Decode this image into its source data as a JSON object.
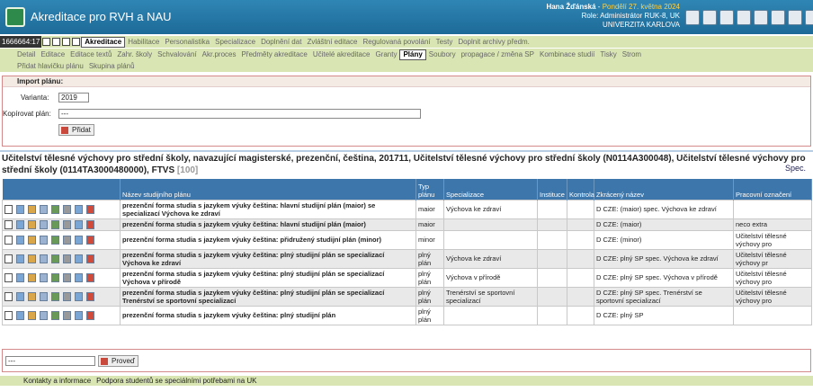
{
  "header": {
    "title": "Akreditace pro RVH a NAU",
    "user": "Hana Žďánská",
    "separator": "-",
    "date": "Pondělí 27. května 2024",
    "role": "Role: Administrátor RUK-8, UK",
    "university": "UNIVERZITA KARLOVA"
  },
  "session": "1666664:17",
  "menu": {
    "main": [
      "Akreditace",
      "Habilitace",
      "Personalistika",
      "Specializace",
      "Doplnění dat",
      "Zvláštní editace",
      "Regulovaná povolání",
      "Testy",
      "Doplnit archivy předm."
    ],
    "main_active": 0,
    "sub": [
      "Detail",
      "Editace",
      "Editace textů",
      "Zahr. školy",
      "Schvalování",
      "Akr.proces",
      "Předměty akreditace",
      "Učitelé akreditace",
      "Granty",
      "Plány",
      "Soubory",
      "propagace / změna SP",
      "Kombinace studií",
      "Tisky",
      "Strom"
    ],
    "sub_active": 9,
    "actions": [
      "Přidat hlavičku plánu",
      "Skupina plánů"
    ]
  },
  "import": {
    "title": "Import plánu:",
    "variant_label": "Varianta:",
    "variant_value": "2019",
    "copy_label": "Kopírovat plán:",
    "copy_value": "---",
    "button": "Přidat"
  },
  "program": {
    "title": "Učitelství tělesné výchovy pro střední školy, navazující magisterské, prezenční, čeština, 201711, Učitelství tělesné výchovy pro střední školy (N0114A300048), Učitelství tělesné výchovy pro střední školy (0114TA3000480000), FTVS",
    "code": "[100]",
    "spec_link": "Spec."
  },
  "table": {
    "columns": [
      "Název studijního plánu",
      "Typ plánu",
      "Specializace",
      "Instituce",
      "Kontrola",
      "Zkrácený název",
      "Pracovní označení"
    ],
    "rows": [
      [
        "prezenční forma studia s jazykem výuky čeština: hlavní studijní plán (maior) se specializací Výchova ke zdraví",
        "maior",
        "Výchova ke zdraví",
        null,
        null,
        "D CZE: (maior) spec. Výchova ke zdraví",
        null
      ],
      [
        "prezenční forma studia s jazykem výuky čeština: hlavní studijní plán (maior)",
        "maior",
        null,
        null,
        null,
        "D CZE: (maior)",
        "neco extra"
      ],
      [
        "prezenční forma studia s jazykem výuky čeština: přidružený studijní plán (minor)",
        "minor",
        null,
        null,
        null,
        "D CZE: (minor)",
        "Učitelství tělesné výchovy pro"
      ],
      [
        "prezenční forma studia s jazykem výuky čeština: plný studijní plán se specializací Výchova ke zdraví",
        "plný plán",
        "Výchova ke zdraví",
        null,
        null,
        "D CZE: plný SP spec. Výchova ke zdraví",
        "Učitelství tělesné výchovy pr"
      ],
      [
        "prezenční forma studia s jazykem výuky čeština: plný studijní plán se specializací Výchova v přírodě",
        "plný plán",
        "Výchova v přírodě",
        null,
        null,
        "D CZE: plný SP spec. Výchova v přírodě",
        "Učitelství tělesné výchovy pro"
      ],
      [
        "prezenční forma studia s jazykem výuky čeština: plný studijní plán se specializací Trenérství se sportovní specializací",
        "plný plán",
        "Trenérství se sportovní specializací",
        null,
        null,
        "D CZE: plný SP spec. Trenérství se sportovní specializací",
        "Učitelství tělesné výchovy pro"
      ],
      [
        "prezenční forma studia s jazykem výuky čeština: plný studijní plán",
        "plný plán",
        null,
        null,
        null,
        "D CZE: plný SP",
        null
      ]
    ]
  },
  "bulk": {
    "select": "---",
    "button": "Proveď"
  },
  "footer": {
    "links": [
      "Kontakty a informace",
      "Podpora studentů se speciálními potřebami na UK"
    ]
  }
}
